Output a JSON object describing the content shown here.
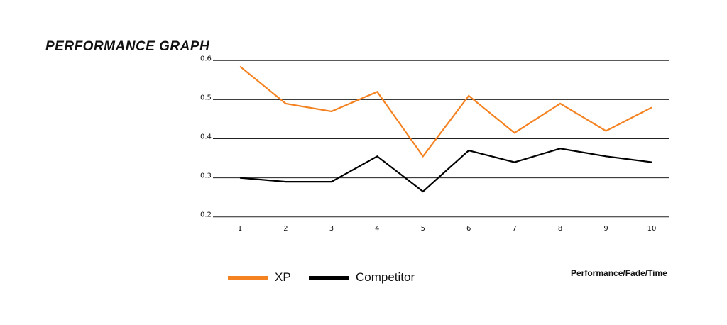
{
  "chart_data": {
    "type": "line",
    "title": "PERFORMANCE GRAPH",
    "xlabel": "Performance/Fade/Time",
    "x": [
      1,
      2,
      3,
      4,
      5,
      6,
      7,
      8,
      9,
      10
    ],
    "ylim": [
      0.2,
      0.6
    ],
    "yticks": [
      "0.6",
      "0.5",
      "0.4",
      "0.3",
      "0.2"
    ],
    "grid": "horizontal",
    "legend_position": "bottom-left",
    "series": [
      {
        "name": "XP",
        "color": "#f58220",
        "values": [
          0.585,
          0.49,
          0.47,
          0.52,
          0.355,
          0.51,
          0.415,
          0.49,
          0.42,
          0.48
        ]
      },
      {
        "name": "Competitor",
        "color": "#000000",
        "values": [
          0.3,
          0.29,
          0.29,
          0.355,
          0.265,
          0.37,
          0.34,
          0.375,
          0.355,
          0.34
        ]
      }
    ]
  }
}
